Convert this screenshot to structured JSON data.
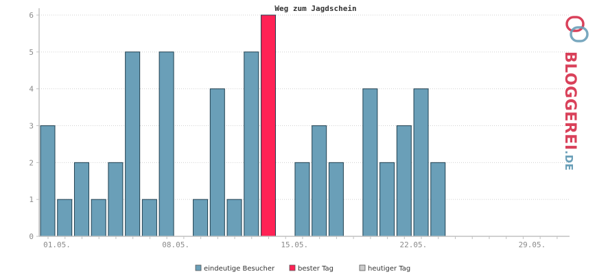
{
  "colors": {
    "bar": "#6a9fb8",
    "bar_stroke": "#1f3f4f",
    "best_day": "#ff2255",
    "today": "#cccccc",
    "grid": "#cfcfcf",
    "axis": "#c0c0c0",
    "logo_red": "#d9415a",
    "logo_blue": "#6a9fb8"
  },
  "logo": {
    "main": "BLOGGEREI",
    "suffix": ".DE"
  },
  "chart_data": {
    "type": "bar",
    "title": "Weg zum Jagdschein",
    "ylim": [
      0,
      6
    ],
    "yticks": [
      0,
      1,
      2,
      3,
      4,
      5,
      6
    ],
    "days": 31,
    "xtick_labels": [
      {
        "day": 1,
        "label": "01.05."
      },
      {
        "day": 8,
        "label": "08.05."
      },
      {
        "day": 15,
        "label": "15.05."
      },
      {
        "day": 22,
        "label": "22.05."
      },
      {
        "day": 29,
        "label": "29.05."
      }
    ],
    "series": [
      {
        "name": "eindeutige Besucher",
        "points": [
          {
            "day": 1,
            "value": 3
          },
          {
            "day": 2,
            "value": 1
          },
          {
            "day": 3,
            "value": 2
          },
          {
            "day": 4,
            "value": 1
          },
          {
            "day": 5,
            "value": 2
          },
          {
            "day": 6,
            "value": 5
          },
          {
            "day": 7,
            "value": 1
          },
          {
            "day": 8,
            "value": 5
          },
          {
            "day": 10,
            "value": 1
          },
          {
            "day": 11,
            "value": 4
          },
          {
            "day": 12,
            "value": 1
          },
          {
            "day": 13,
            "value": 5
          },
          {
            "day": 14,
            "value": 6,
            "best": true
          },
          {
            "day": 16,
            "value": 2
          },
          {
            "day": 17,
            "value": 3
          },
          {
            "day": 18,
            "value": 2
          },
          {
            "day": 20,
            "value": 4
          },
          {
            "day": 21,
            "value": 2
          },
          {
            "day": 22,
            "value": 3
          },
          {
            "day": 23,
            "value": 4
          },
          {
            "day": 24,
            "value": 2
          }
        ]
      }
    ],
    "legend": [
      {
        "label": "eindeutige Besucher",
        "color": "#6a9fb8"
      },
      {
        "label": "bester Tag",
        "color": "#ff2255"
      },
      {
        "label": "heutiger Tag",
        "color": "#cccccc"
      }
    ],
    "legend_position": "bottom",
    "grid": true
  }
}
